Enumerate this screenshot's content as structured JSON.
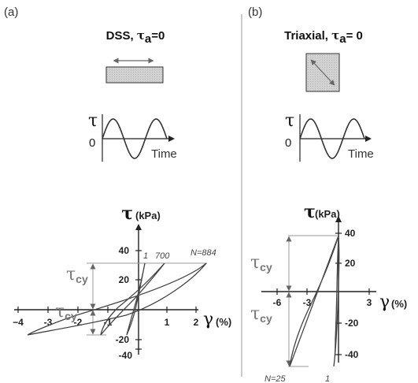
{
  "colors": {
    "loop": "#444444",
    "axis": "#222222",
    "gray_text": "#777777",
    "specimen": "#c8c8c8",
    "arrow": "#666666",
    "guide": "#999999"
  },
  "panel_a": {
    "label": "(a)",
    "title_prefix": "DSS, ",
    "title_tau": "τ",
    "title_sub": "a",
    "title_suffix": "=0",
    "wave": {
      "tau": "τ",
      "zero": "0",
      "time": "Time"
    },
    "plot": {
      "y_symbol": "τ",
      "y_unit": "(kPa)",
      "x_symbol": "γ",
      "x_unit": "(%)",
      "y_ticks": [
        "40",
        "20",
        "-20",
        "-40"
      ],
      "x_ticks": [
        "−4",
        "-3",
        "-2",
        "-1",
        "1",
        "2"
      ],
      "tcy_upper": {
        "tau": "τ",
        "sub": "cy"
      },
      "tcy_lower": {
        "tau": "τ",
        "sub": "cy"
      },
      "cycle_labels": [
        "1",
        "700",
        "N=884"
      ]
    }
  },
  "panel_b": {
    "label": "(b)",
    "title_prefix": "Triaxial, ",
    "title_tau": "τ",
    "title_sub": "a",
    "title_suffix": "= 0",
    "wave": {
      "tau": "τ",
      "zero": "0",
      "time": "Time"
    },
    "plot": {
      "y_symbol": "τ",
      "y_unit": "(kPa)",
      "x_symbol": "γ",
      "x_unit": "(%)",
      "y_ticks": [
        "40",
        "20",
        "-20",
        "-40"
      ],
      "x_ticks": [
        "-6",
        "-3",
        "3"
      ],
      "tcy_upper": {
        "tau": "τ",
        "sub": "cy"
      },
      "tcy_lower": {
        "tau": "τ",
        "sub": "cy"
      },
      "cycle_labels": [
        "N=25",
        "1"
      ]
    }
  }
}
